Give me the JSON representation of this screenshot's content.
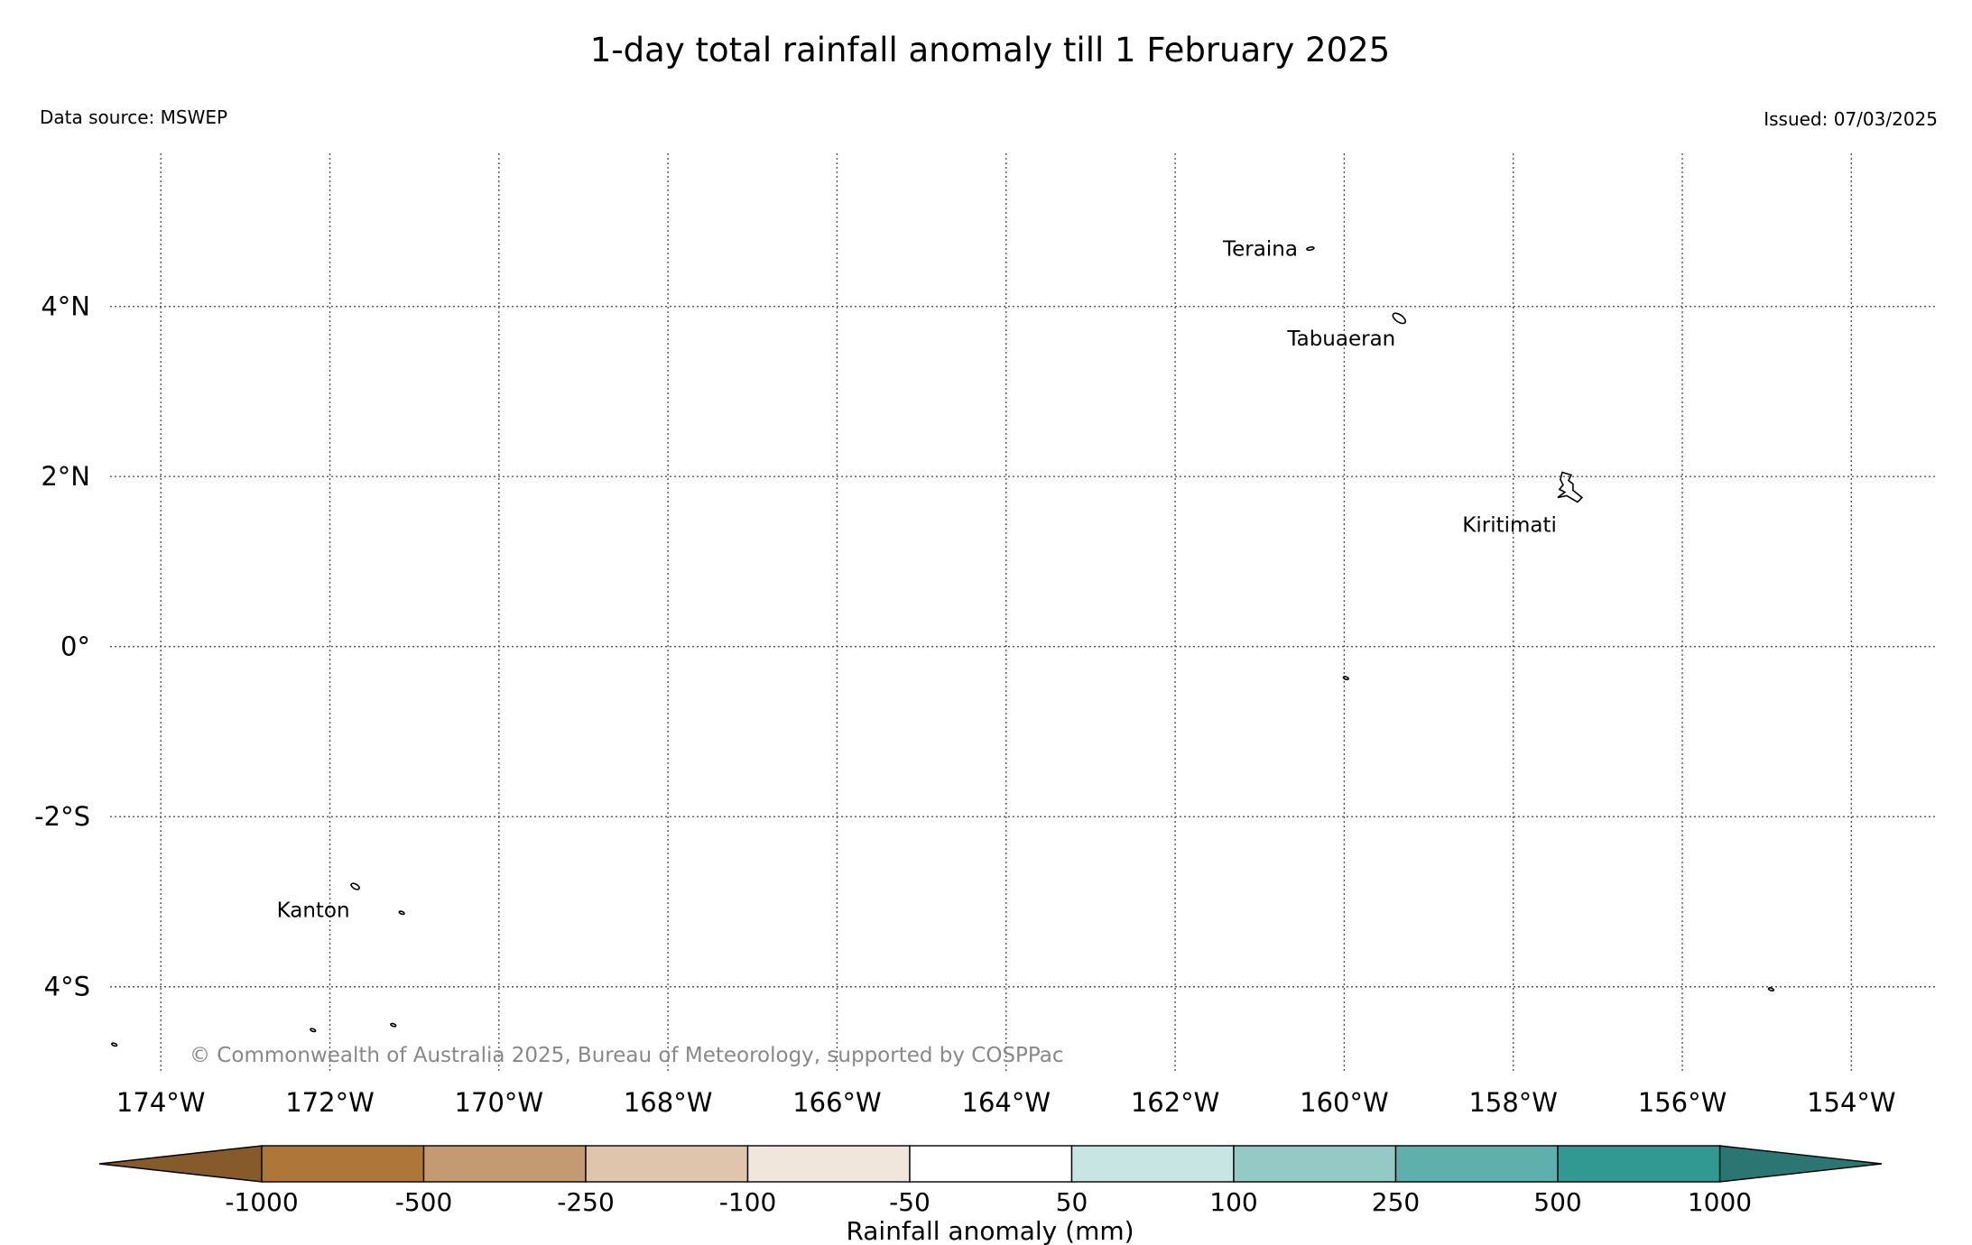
{
  "title": "1-day total rainfall anomaly till 1 February 2025",
  "data_source": "Data source: MSWEP",
  "issued": "Issued: 07/03/2025",
  "copyright": "© Commonwealth of Australia 2025, Bureau of Meteorology, supported by COSPPac",
  "map": {
    "lon_range": [
      -174.6,
      -153.0
    ],
    "lat_range": [
      -5.0,
      5.8
    ],
    "lon_ticks": [
      {
        "value": -174,
        "label": "174°W"
      },
      {
        "value": -172,
        "label": "172°W"
      },
      {
        "value": -170,
        "label": "170°W"
      },
      {
        "value": -168,
        "label": "168°W"
      },
      {
        "value": -166,
        "label": "166°W"
      },
      {
        "value": -164,
        "label": "164°W"
      },
      {
        "value": -162,
        "label": "162°W"
      },
      {
        "value": -160,
        "label": "160°W"
      },
      {
        "value": -158,
        "label": "158°W"
      },
      {
        "value": -156,
        "label": "156°W"
      },
      {
        "value": -154,
        "label": "154°W"
      }
    ],
    "lat_ticks": [
      {
        "value": 4,
        "label": "4°N"
      },
      {
        "value": 2,
        "label": "2°N"
      },
      {
        "value": 0,
        "label": "0°"
      },
      {
        "value": -2,
        "label": "-2°S"
      },
      {
        "value": -4,
        "label": "4°S"
      }
    ],
    "grid": "dotted",
    "places": [
      {
        "name": "Teraina",
        "lon": -160.4,
        "lat": 4.68
      },
      {
        "name": "Tabuaeran",
        "lon": -159.35,
        "lat": 3.86
      },
      {
        "name": "Kiritimati",
        "lon": -157.4,
        "lat": 1.88
      },
      {
        "name": "Kanton",
        "lon": -171.7,
        "lat": -2.82
      }
    ],
    "islands_unlabeled": [
      {
        "lon": -171.15,
        "lat": -3.13
      },
      {
        "lon": -172.2,
        "lat": -4.51
      },
      {
        "lon": -171.25,
        "lat": -4.45
      },
      {
        "lon": -174.55,
        "lat": -4.68
      },
      {
        "lon": -159.98,
        "lat": -0.37
      },
      {
        "lon": -154.95,
        "lat": -4.03
      }
    ]
  },
  "colorbar": {
    "label": "Rainfall anomaly (mm)",
    "boundaries": [
      "-1000",
      "-500",
      "-250",
      "-100",
      "-50",
      "50",
      "100",
      "250",
      "500",
      "1000"
    ],
    "colors": [
      "#ae7739",
      "#c39a72",
      "#dec5ac",
      "#f1e6db",
      "#ffffff",
      "#c7e5e3",
      "#94c9c6",
      "#5fb0ad",
      "#319892"
    ],
    "extend_min_color": "#865a2b",
    "extend_max_color": "#2b7572"
  }
}
